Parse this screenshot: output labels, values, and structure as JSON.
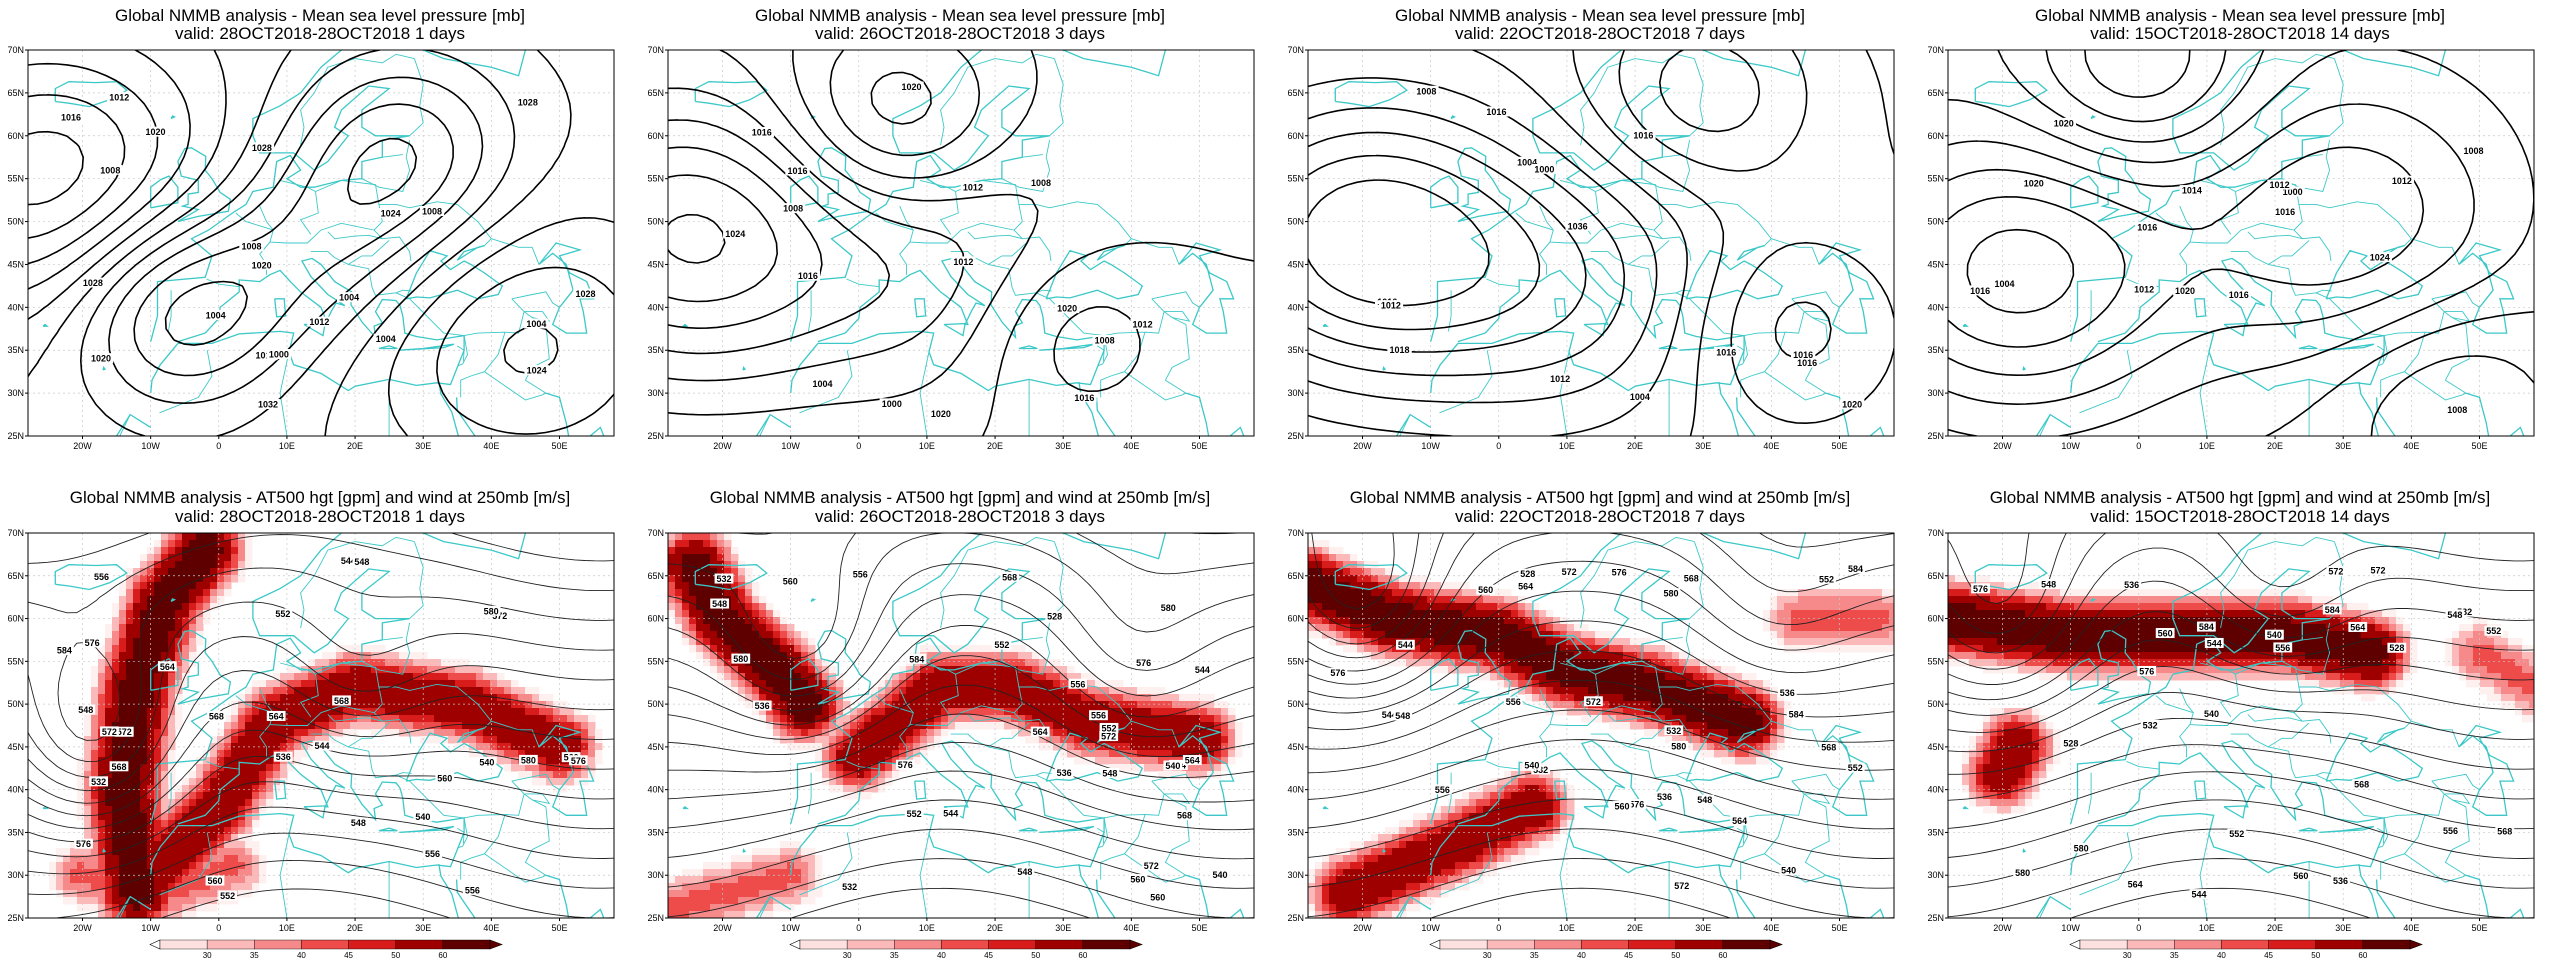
{
  "colors": {
    "coast": "#3cc8c8",
    "contour": "#000000",
    "grid": "#c8c8c8",
    "wind_scale": [
      "#fde0e0",
      "#fbb9b9",
      "#f68a8a",
      "#ee4b4b",
      "#d81b1b",
      "#9e0000",
      "#5e0000"
    ]
  },
  "axes": {
    "lon_ticks": [
      "20W",
      "10W",
      "0",
      "10E",
      "20E",
      "30E",
      "40E",
      "50E"
    ],
    "lat_ticks": [
      "70N",
      "65N",
      "60N",
      "55N",
      "50N",
      "45N",
      "40N",
      "35N",
      "30N",
      "25N"
    ]
  },
  "colorbar": {
    "labels": [
      "30",
      "35",
      "40",
      "45",
      "50",
      "60"
    ]
  },
  "top_panels": [
    {
      "title": "Global NMMB analysis - Mean sea level pressure [mb]",
      "valid": "valid: 28OCT2018-28OCT2018   1 days",
      "labels": [
        "1028",
        "1028",
        "1024",
        "1008",
        "1004",
        "1012",
        "1016",
        "1012",
        "1008",
        "1004",
        "1016",
        "1020",
        "1000",
        "1004",
        "1008",
        "1020",
        "1032",
        "1028",
        "1024",
        "1004",
        "1020",
        "1028"
      ]
    },
    {
      "title": "Global NMMB analysis - Mean sea level pressure [mb]",
      "valid": "valid: 26OCT2018-28OCT2018   3 days",
      "labels": [
        "1016",
        "1016",
        "1004",
        "1008",
        "1012",
        "1016",
        "1008",
        "1016",
        "1012",
        "1020",
        "1024",
        "1020",
        "1008",
        "1012",
        "1020",
        "1000"
      ]
    },
    {
      "title": "Global NMMB analysis - Mean sea level pressure [mb]",
      "valid": "valid: 22OCT2018-28OCT2018   7 days",
      "labels": [
        "1004",
        "1000",
        "1004",
        "1008",
        "1012",
        "1016",
        "1020",
        "1016",
        "1016",
        "1016",
        "1018",
        "1016",
        "1016",
        "1036",
        "1012"
      ]
    },
    {
      "title": "Global NMMB analysis - Mean sea level pressure [mb]",
      "valid": "valid: 15OCT2018-28OCT2018   14 days",
      "labels": [
        "1000",
        "1004",
        "1008",
        "1012",
        "1016",
        "1020",
        "1024",
        "1016",
        "1012",
        "1016",
        "1020",
        "1016",
        "1020",
        "1014",
        "1012",
        "1008"
      ]
    }
  ],
  "bottom_panels": [
    {
      "title": "Global NMMB analysis - AT500 hgt [gpm] and wind at 250mb [m/s]",
      "valid": "valid: 28OCT2018-28OCT2018   1 days",
      "labels": [
        "552",
        "556",
        "560",
        "564",
        "568",
        "572",
        "576",
        "540",
        "548",
        "548",
        "544",
        "556",
        "560",
        "568",
        "544",
        "548",
        "552",
        "556",
        "560",
        "564",
        "568",
        "572",
        "576",
        "580",
        "584",
        "532",
        "536",
        "540",
        "572",
        "576",
        "580"
      ]
    },
    {
      "title": "Global NMMB analysis - AT500 hgt [gpm] and wind at 250mb [m/s]",
      "valid": "valid: 26OCT2018-28OCT2018   3 days",
      "labels": [
        "544",
        "548",
        "552",
        "556",
        "560",
        "532",
        "536",
        "540",
        "544",
        "548",
        "552",
        "556",
        "560",
        "564",
        "568",
        "572",
        "576",
        "580",
        "528",
        "532",
        "536",
        "540",
        "544",
        "548",
        "552",
        "556",
        "560",
        "564",
        "568",
        "572",
        "576",
        "580",
        "584"
      ]
    },
    {
      "title": "Global NMMB analysis - AT500 hgt [gpm] and wind at 250mb [m/s]",
      "valid": "valid: 22OCT2018-28OCT2018   7 days",
      "labels": [
        "532",
        "536",
        "540",
        "544",
        "548",
        "552",
        "556",
        "560",
        "564",
        "568",
        "572",
        "576",
        "572",
        "576",
        "580",
        "584",
        "528",
        "532",
        "536",
        "540",
        "544",
        "548",
        "552",
        "556",
        "560",
        "564",
        "568",
        "572",
        "576",
        "580",
        "584"
      ]
    },
    {
      "title": "Global NMMB analysis - AT500 hgt [gpm] and wind at 250mb [m/s]",
      "valid": "valid: 15OCT2018-28OCT2018   14 days",
      "labels": [
        "528",
        "532",
        "536",
        "540",
        "544",
        "548",
        "552",
        "556",
        "560",
        "564",
        "568",
        "572",
        "576",
        "580",
        "584",
        "528",
        "532",
        "536",
        "540",
        "544",
        "548",
        "552",
        "556",
        "560",
        "564",
        "568",
        "572",
        "576",
        "580",
        "584"
      ]
    }
  ]
}
